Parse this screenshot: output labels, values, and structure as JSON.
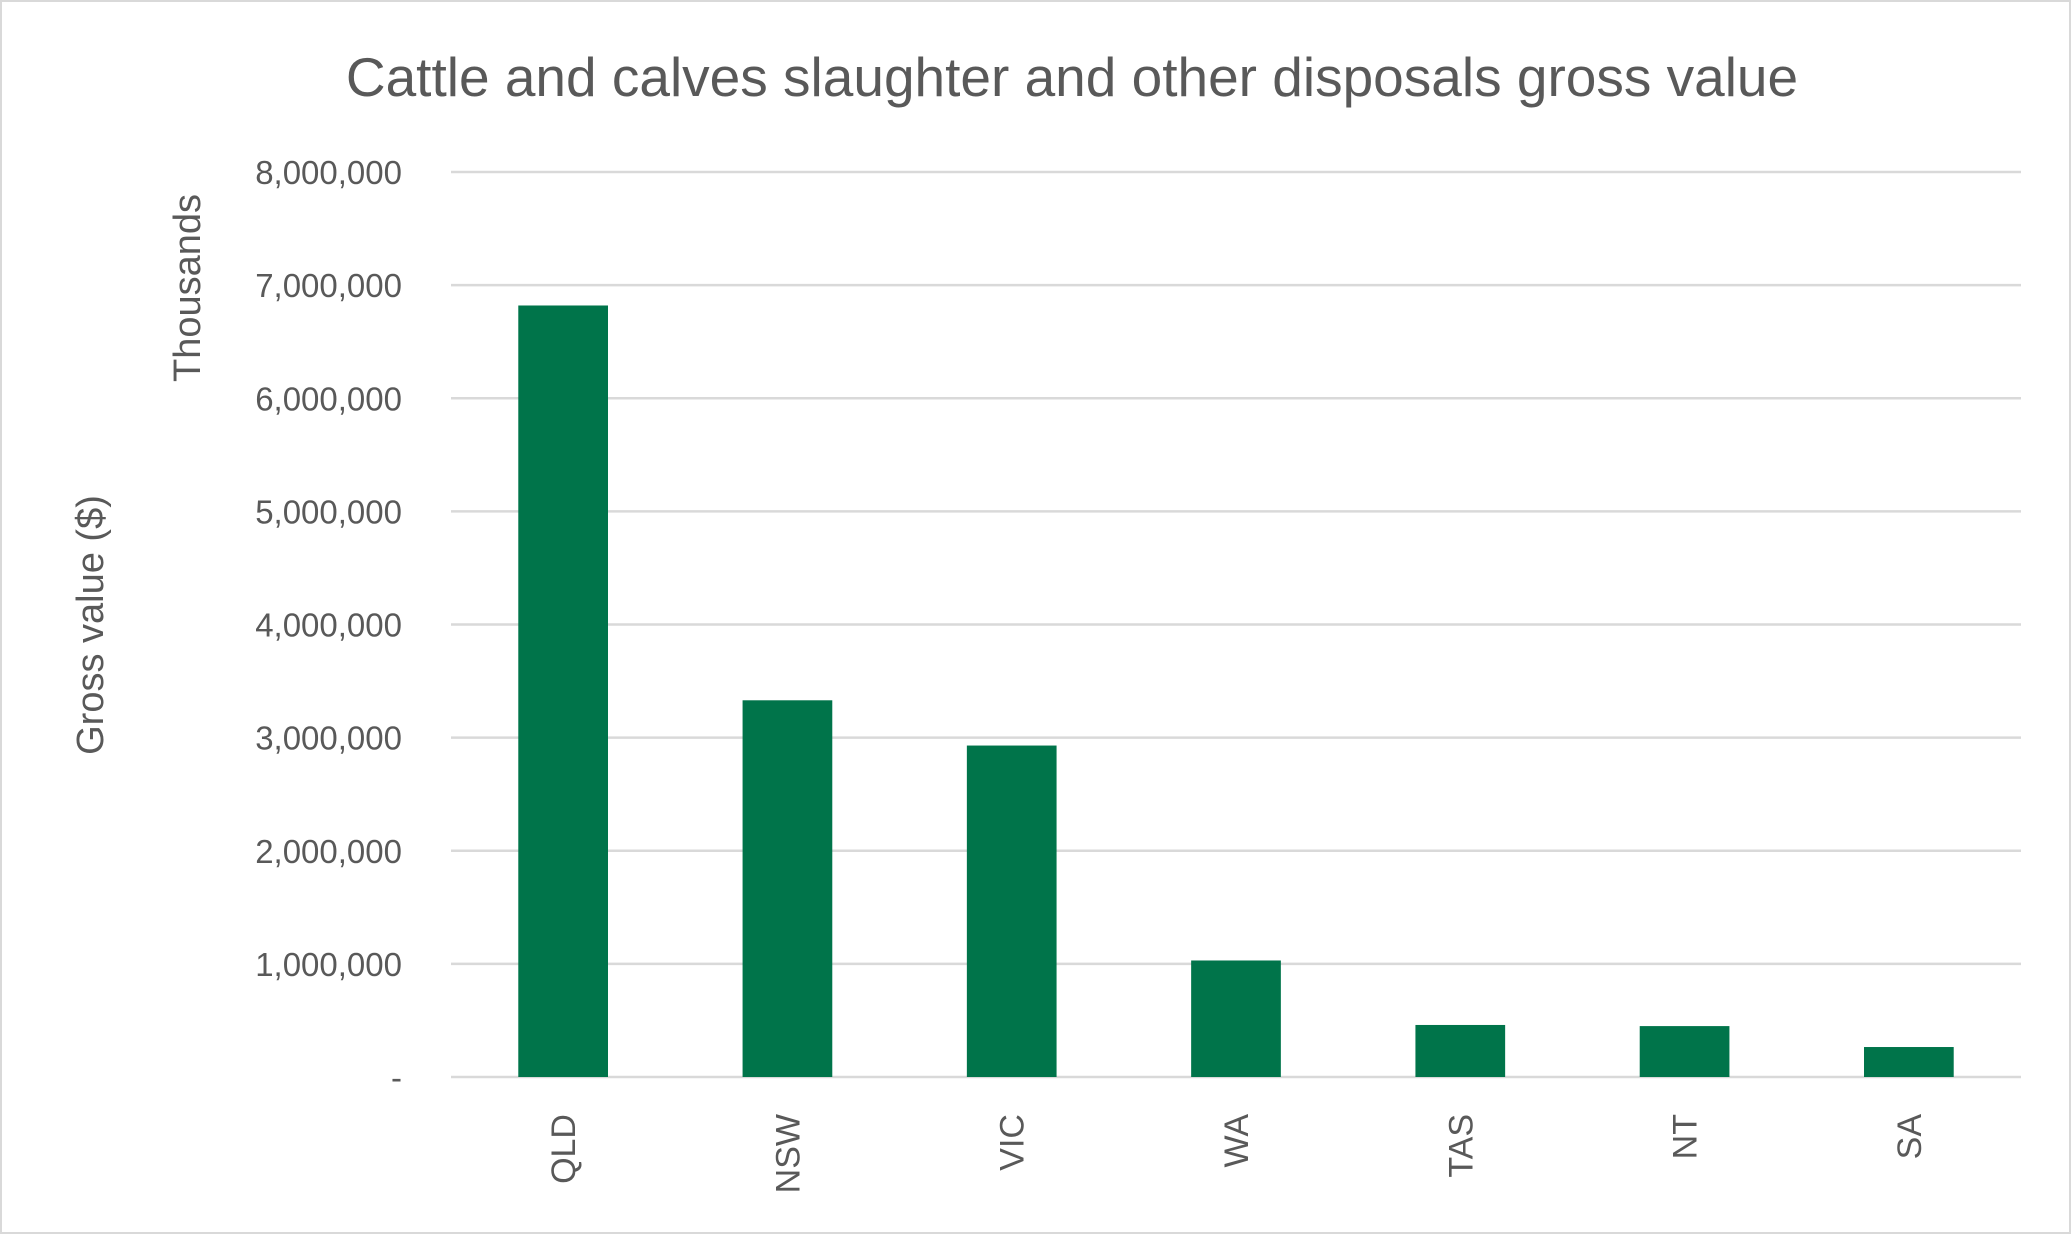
{
  "chart_data": {
    "type": "bar",
    "title": "Cattle and calves slaughter and other disposals gross value",
    "xlabel": "",
    "ylabel": "Gross value ($)",
    "y_units_label": "Thousands",
    "categories": [
      "QLD",
      "NSW",
      "VIC",
      "WA",
      "TAS",
      "NT",
      "SA"
    ],
    "series": [
      {
        "values": [
          6820000,
          3330000,
          2930000,
          1030000,
          460000,
          450000,
          265000
        ],
        "color": "#00744a"
      }
    ],
    "ylim": [
      0,
      8000000
    ],
    "yticks": [
      0,
      1000000,
      2000000,
      3000000,
      4000000,
      5000000,
      6000000,
      7000000,
      8000000
    ],
    "ytick_labels": [
      "-",
      "1,000,000",
      "2,000,000",
      "3,000,000",
      "4,000,000",
      "5,000,000",
      "6,000,000",
      "7,000,000",
      "8,000,000"
    ],
    "grid": true,
    "legend": "none",
    "category_label_orientation": "vertical"
  }
}
